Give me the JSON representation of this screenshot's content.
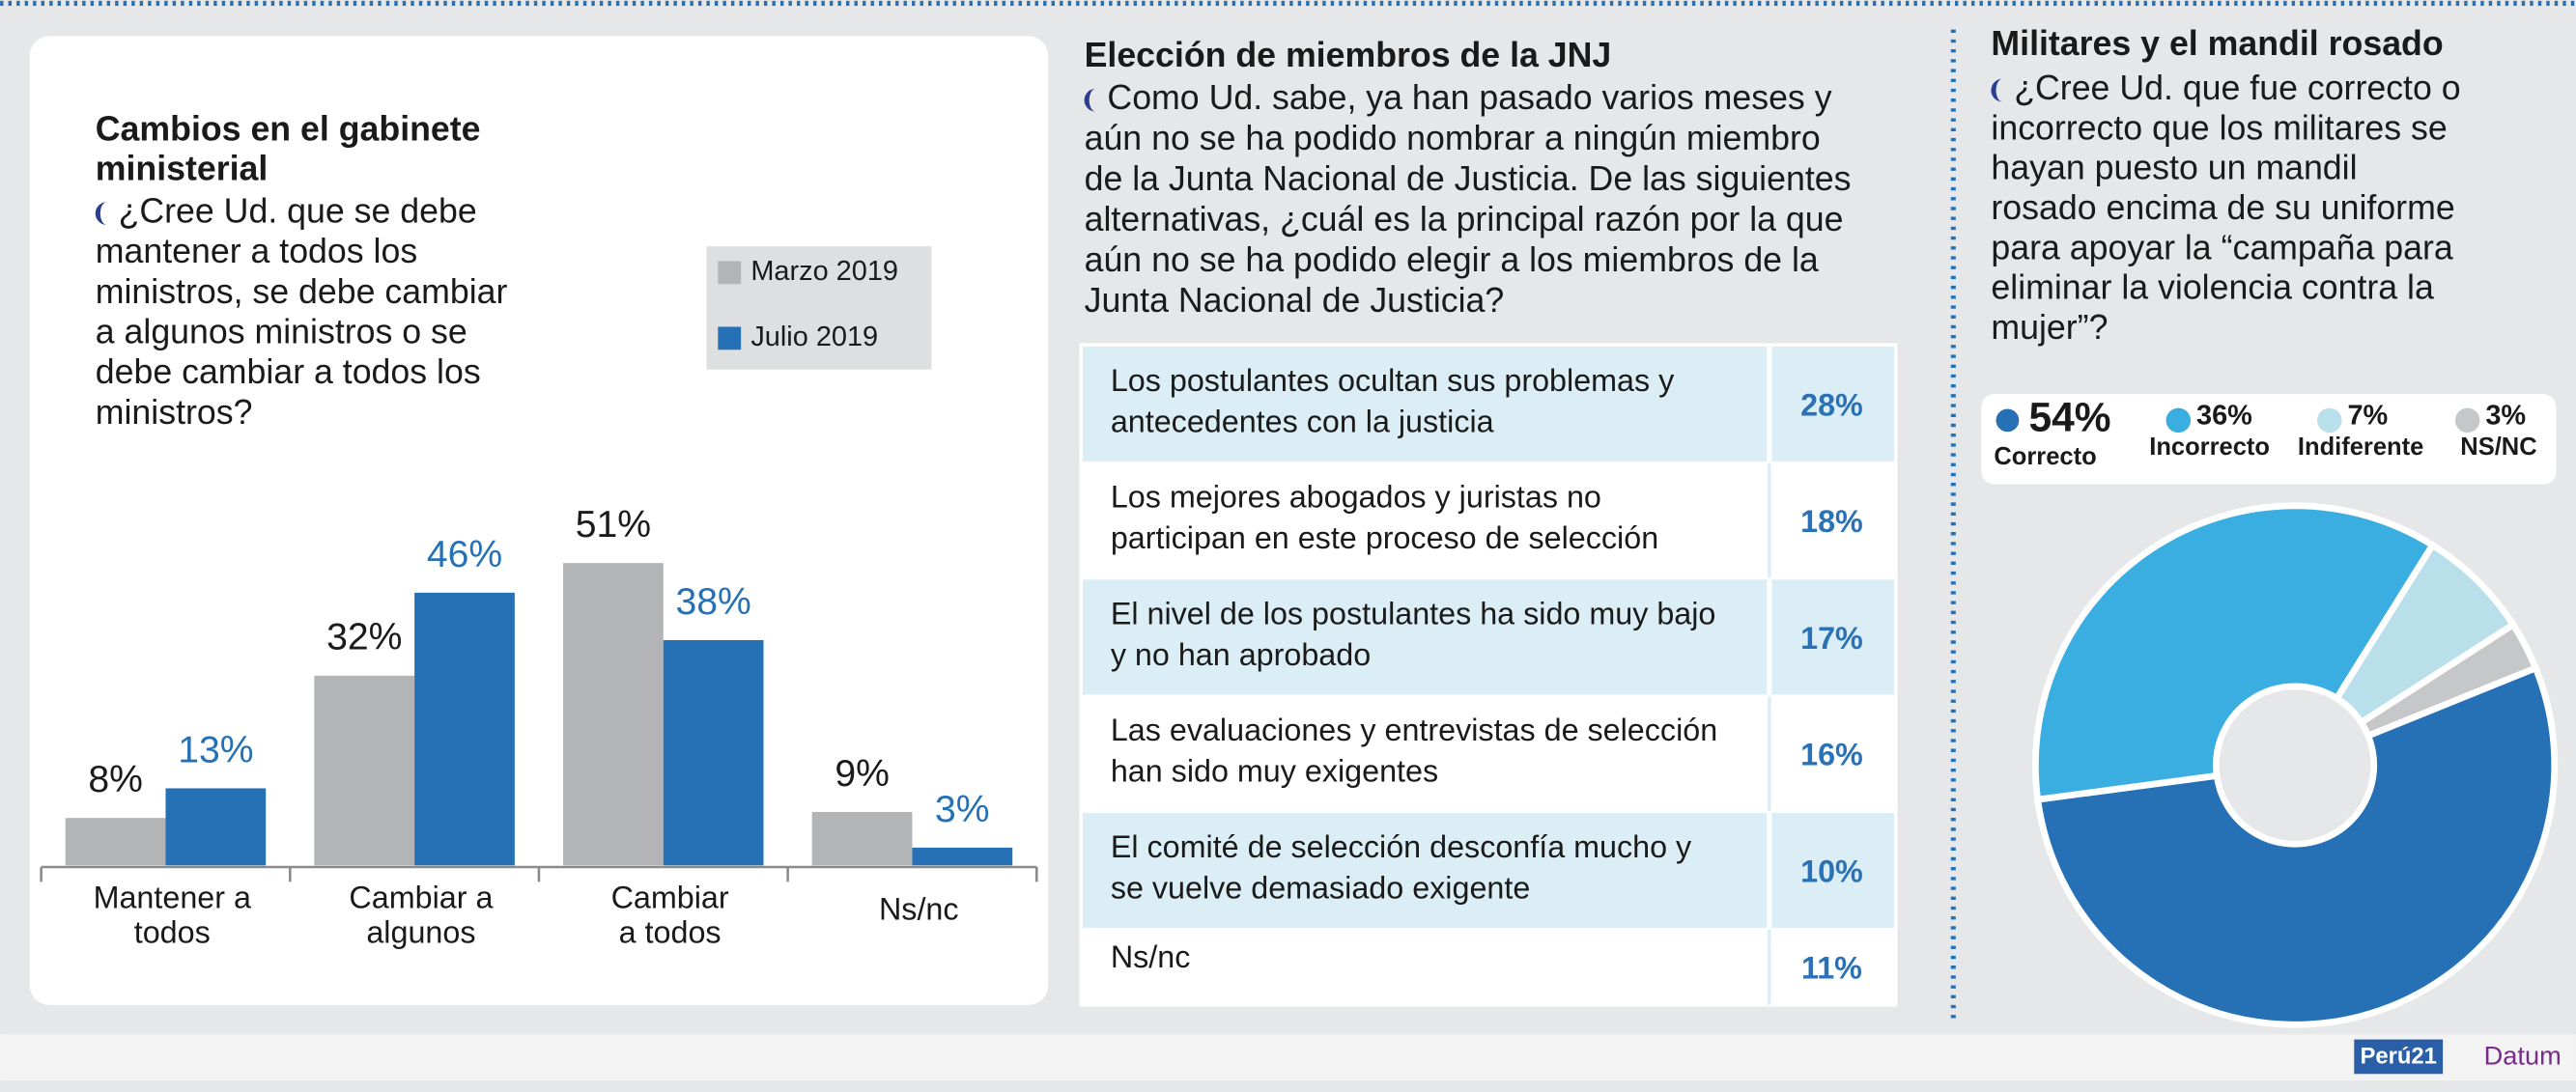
{
  "chart_data": [
    {
      "type": "bar",
      "title": [
        "Cambios en el gabinete",
        "ministerial"
      ],
      "question": [
        "¿Cree Ud. que se debe",
        "mantener a todos los",
        "ministros, se debe cambiar",
        "a algunos ministros o se",
        "debe cambiar a todos los",
        "ministros?"
      ],
      "categories": [
        [
          "Mantener a",
          "todos"
        ],
        [
          "Cambiar a",
          "algunos"
        ],
        [
          "Cambiar",
          "a todos"
        ],
        [
          "Ns/nc"
        ]
      ],
      "series": [
        {
          "name": "Marzo 2019",
          "color": "#b3b4b6",
          "values": [
            8,
            32,
            51,
            9
          ],
          "value_labels": [
            "8%",
            "32%",
            "51%",
            "9%"
          ]
        },
        {
          "name": "Julio 2019",
          "color": "#2671b6",
          "values": [
            13,
            46,
            38,
            3
          ],
          "value_labels": [
            "13%",
            "46%",
            "38%",
            "3%"
          ]
        }
      ]
    },
    {
      "type": "pie",
      "title": "Militares y el mandil rosado",
      "question": [
        "¿Cree Ud. que fue correcto o",
        "incorrecto que los militares se",
        "hayan puesto un mandil",
        "rosado encima de su uniforme",
        "para apoyar la “campaña para",
        "eliminar la violencia contra la",
        "mujer”?"
      ],
      "categories": [
        "Correcto",
        "Incorrecto",
        "Indiferente",
        "NS/NC"
      ],
      "values": [
        54,
        36,
        7,
        3
      ],
      "value_labels": [
        "54%",
        "36%",
        "7%",
        "3%"
      ],
      "colors": [
        "#2671b6",
        "#3aaee0",
        "#b8dfea",
        "#c6c7c9"
      ],
      "donut": true
    }
  ],
  "table": {
    "title": "Elección de miembros de la JNJ",
    "question": [
      "Como Ud. sabe, ya han pasado varios meses y",
      "aún no se ha podido nombrar a ningún miembro",
      "de la Junta Nacional de Justicia. De las siguientes",
      "alternativas, ¿cuál es la principal razón por la que",
      "aún no se ha podido elegir a los miembros de la",
      "Junta Nacional de Justicia?"
    ],
    "rows": [
      {
        "label": [
          "Los postulantes ocultan sus problemas y",
          "antecedentes con la justicia"
        ],
        "value": "28%"
      },
      {
        "label": [
          "Los mejores abogados y juristas no",
          "participan en este proceso de selección"
        ],
        "value": "18%"
      },
      {
        "label": [
          "El nivel de los postulantes ha sido muy bajo",
          "y no han aprobado"
        ],
        "value": "17%"
      },
      {
        "label": [
          "Las evaluaciones y entrevistas de selección",
          "han sido muy exigentes"
        ],
        "value": "16%"
      },
      {
        "label": [
          "El comité de selección desconfía mucho y",
          "se vuelve demasiado exigente"
        ],
        "value": "10%"
      },
      {
        "label": [
          "Ns/nc"
        ],
        "value": "11%"
      }
    ]
  },
  "footer": {
    "logos": [
      "Perú21",
      "Datum"
    ]
  }
}
